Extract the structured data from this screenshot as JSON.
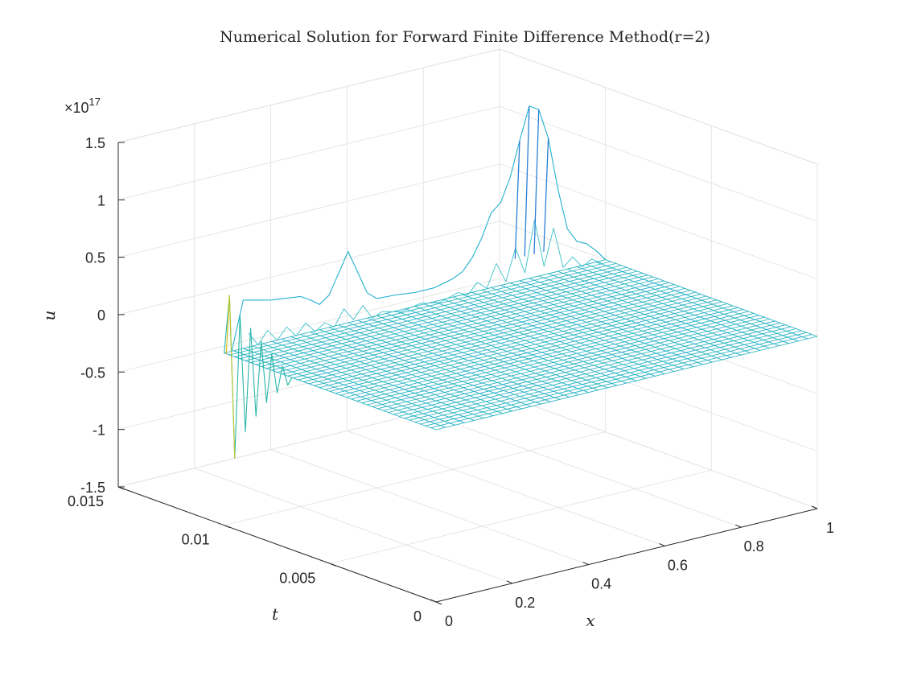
{
  "chart_data": {
    "type": "surface",
    "title": "Numerical Solution for Forward Finite Difference Method(r=2)",
    "xlabel": "x",
    "ylabel": "t",
    "zlabel": "u",
    "xlim": [
      0,
      1
    ],
    "ylim": [
      0,
      0.015
    ],
    "zlim": [
      -1.5e+17,
      1.5e+17
    ],
    "xticks": [
      "0",
      "0.2",
      "0.4",
      "0.6",
      "0.8",
      "1"
    ],
    "yticks": [
      "0",
      "0.005",
      "0.01",
      "0.015"
    ],
    "zticks": [
      "-1.5",
      "-1",
      "-0.5",
      "0",
      "0.5",
      "1",
      "1.5"
    ],
    "z_exponent_base": "×10",
    "z_exponent_power": "17",
    "grid": true,
    "mesh_x_range": [
      0,
      1
    ],
    "mesh_t_range": [
      0,
      0.01
    ],
    "mesh_nx": 40,
    "mesh_nt": 40,
    "ridge_x_zero": [
      {
        "t": 0.00975,
        "u": 5.2e+16
      },
      {
        "t": 0.0095,
        "u": -8.8e+16
      },
      {
        "t": 0.00925,
        "u": 3.8e+16
      },
      {
        "t": 0.009,
        "u": -6.2e+16
      },
      {
        "t": 0.00875,
        "u": 3e+16
      },
      {
        "t": 0.0085,
        "u": -4.5e+16
      },
      {
        "t": 0.00825,
        "u": 2.2e+16
      },
      {
        "t": 0.008,
        "u": -3e+16
      },
      {
        "t": 0.00775,
        "u": 1.4e+16
      },
      {
        "t": 0.0075,
        "u": -1.8e+16
      },
      {
        "t": 0.00725,
        "u": 7000000000000000.0
      },
      {
        "t": 0.007,
        "u": -8000000000000000.0
      }
    ],
    "ridge_t_final": [
      {
        "x": 0.05,
        "u": 4.2e+16
      },
      {
        "x": 0.075,
        "u": 4e+16
      },
      {
        "x": 0.1,
        "u": 3.8e+16
      },
      {
        "x": 0.125,
        "u": 3.6e+16
      },
      {
        "x": 0.15,
        "u": 3.5e+16
      },
      {
        "x": 0.175,
        "u": 3.4e+16
      },
      {
        "x": 0.2,
        "u": 3.3e+16
      },
      {
        "x": 0.225,
        "u": 2.8e+16
      },
      {
        "x": 0.25,
        "u": 2.2e+16
      },
      {
        "x": 0.275,
        "u": 2.8e+16
      },
      {
        "x": 0.3,
        "u": 4.5e+16
      },
      {
        "x": 0.325,
        "u": 6.2e+16
      },
      {
        "x": 0.35,
        "u": 4.2e+16
      },
      {
        "x": 0.375,
        "u": 2.2e+16
      },
      {
        "x": 0.4,
        "u": 1.5e+16
      },
      {
        "x": 0.45,
        "u": 1.4e+16
      },
      {
        "x": 0.5,
        "u": 1.2e+16
      },
      {
        "x": 0.55,
        "u": 1.2e+16
      },
      {
        "x": 0.6,
        "u": 1.6e+16
      },
      {
        "x": 0.625,
        "u": 2e+16
      },
      {
        "x": 0.65,
        "u": 3e+16
      },
      {
        "x": 0.675,
        "u": 4.5e+16
      },
      {
        "x": 0.7,
        "u": 6.5e+16
      },
      {
        "x": 0.725,
        "u": 7.2e+16
      },
      {
        "x": 0.75,
        "u": 9.2e+16
      },
      {
        "x": 0.775,
        "u": 1.22e+17
      },
      {
        "x": 0.8,
        "u": 1.5e+17
      },
      {
        "x": 0.825,
        "u": 1.45e+17
      },
      {
        "x": 0.85,
        "u": 1.18e+17
      },
      {
        "x": 0.875,
        "u": 7.2e+16
      },
      {
        "x": 0.9,
        "u": 3.5e+16
      },
      {
        "x": 0.925,
        "u": 2.2e+16
      },
      {
        "x": 0.95,
        "u": 1.8e+16
      },
      {
        "x": 0.975,
        "u": 1e+16
      }
    ]
  }
}
